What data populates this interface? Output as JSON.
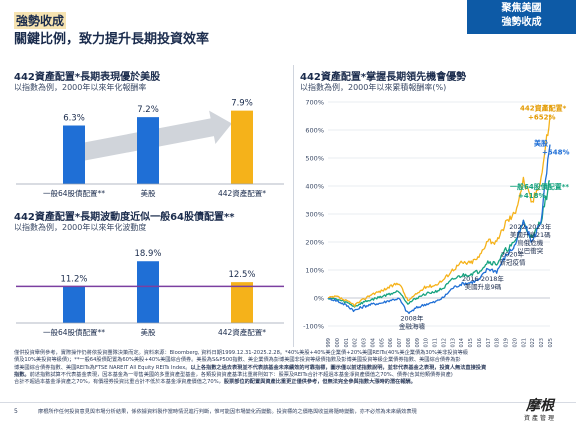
{
  "header": {
    "tag_title": "強勢收成",
    "main_title": "關鍵比例，致力提升長期投資效率",
    "badge_line1": "聚焦美國",
    "badge_line2": "強勢收成"
  },
  "chart_data": [
    {
      "type": "bar",
      "title": "442資產配置*長期表現優於美股",
      "subtitle": "以指數為例，2000年以來年化報酬率",
      "categories": [
        "一般64股債配置**",
        "美股",
        "442資產配置*"
      ],
      "values": [
        6.3,
        7.2,
        7.9
      ],
      "value_labels": [
        "6.3%",
        "7.2%",
        "7.9%"
      ],
      "colors": [
        "#1f6fd6",
        "#1f6fd6",
        "#f5b21a"
      ],
      "arrow_color": "#d0d4da",
      "ylim": [
        0,
        8.4
      ]
    },
    {
      "type": "bar",
      "title": "442資產配置*長期波動度近似一般64股債配置**",
      "subtitle": "以指數為例，2000年以來年化波動度",
      "categories": [
        "一般64股債配置**",
        "美股",
        "442資產配置*"
      ],
      "values": [
        11.2,
        18.9,
        12.5
      ],
      "value_labels": [
        "11.2%",
        "18.9%",
        "12.5%"
      ],
      "colors": [
        "#1f6fd6",
        "#1f6fd6",
        "#f5b21a"
      ],
      "reference_line_color": "#7b3fa0",
      "ylim": [
        0,
        20.5
      ]
    },
    {
      "type": "line",
      "title": "442資產配置*掌握長期領先機會優勢",
      "subtitle": "以指數為例，2000年以來累積報酬率(%)",
      "x": [
        "1999",
        "2000",
        "2001",
        "2002",
        "2003",
        "2004",
        "2005",
        "2006",
        "2007",
        "2008",
        "2009",
        "2010",
        "2011",
        "2012",
        "2013",
        "2014",
        "2015",
        "2016",
        "2017",
        "2018",
        "2019",
        "2020",
        "2021",
        "2022",
        "2023",
        "2025"
      ],
      "ylim": [
        -100,
        700
      ],
      "y_ticks": [
        "-100%",
        "0%",
        "100%",
        "200%",
        "300%",
        "400%",
        "500%",
        "600%",
        "700%"
      ],
      "series": [
        {
          "name": "442資產配置*",
          "end_label": "+652%",
          "color": "#f5b21a",
          "values": [
            0,
            5,
            -10,
            -25,
            -5,
            15,
            25,
            40,
            55,
            -10,
            15,
            40,
            45,
            65,
            100,
            125,
            125,
            145,
            210,
            195,
            270,
            300,
            420,
            340,
            430,
            652
          ]
        },
        {
          "name": "美股",
          "end_label": "+548%",
          "color": "#1f6fd6",
          "values": [
            0,
            -10,
            -25,
            -45,
            -30,
            -22,
            -18,
            -8,
            -2,
            -55,
            -35,
            -22,
            -15,
            2,
            35,
            50,
            55,
            65,
            105,
            95,
            150,
            185,
            270,
            200,
            280,
            548
          ]
        },
        {
          "name": "一般64股債配置**",
          "end_label": "+418%",
          "color": "#16a37f",
          "values": [
            0,
            -5,
            -15,
            -30,
            -15,
            -5,
            5,
            15,
            25,
            -20,
            0,
            15,
            22,
            35,
            65,
            80,
            85,
            95,
            130,
            122,
            170,
            195,
            270,
            210,
            280,
            418
          ]
        }
      ],
      "annotations": [
        {
          "line1": "2008年",
          "line2": "金融海嘯"
        },
        {
          "line1": "2016-2018年",
          "line2": "美國升息9碼"
        },
        {
          "line1": "2020年",
          "line2": "新冠疫情"
        },
        {
          "line1": "2022-2023年",
          "line2": "美國升息21碼",
          "line3": "烏俄危機",
          "line4": "以巴衝突"
        }
      ]
    }
  ],
  "footnote": {
    "line1": "僅供投資舉例參考，實際操作仍將依投資團隊決策而定。資料來源：Bloomberg, 資料日期1999.12.31-2025.2.28。*40%美股+40%美企業債+20%美國REITs(40%美企業債為30%美非投資等級",
    "line2": "債及10%美投資等級債)；**一般64股債配置為60%美股+40%美國綜合債券。美股為S&P500指數、美企業債為彭博美國非投資等級債指數及彭博美國投資等級企業債券指數、美國綜合債券為彭",
    "line3": "博美國綜合債券指數、美國REITs為FTSE NAREIT All Equity REITs Index。",
    "line3_bold": "以上各指數之過去表現並不代表該基金未來績效的可靠指標，圖示僅以前述指數說明，並非代表基金之表現，投資人無法直接投資",
    "line4_bold": "指數。",
    "line4": "前述指數試算不代表基金表現，因本基金為一零售美國的多重資產型基金，各類投資資產基準比重將則如下：股票及REITs合計不超過本基金淨資產價值之70%、債券(含其他類債券資產)",
    "line5": "合計不超過本基金淨資產之70%，有價證券投資比重合計不低於本基金淨資產價值之70%，",
    "line5_bold": "股票部位的配置與資產比重更正僅供參考，但無法完全參與指數大漲時的潛在報酬。"
  },
  "footer": {
    "page_number": "5",
    "disclaimer": "摩根所作任何投資意見與市場分析結果，係依據資料製作當時情況進行判斷，惟可能因市場變化而變動。投資標的之價格與收益將隨時變動，亦不必然為未來績效表現",
    "logo_main": "摩根",
    "logo_sub": "資產管理"
  }
}
